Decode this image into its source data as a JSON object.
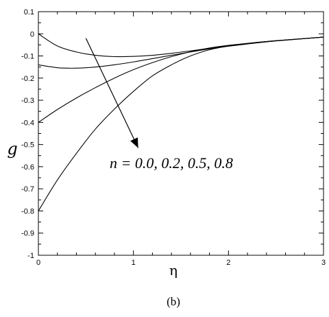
{
  "chart_data": {
    "type": "line",
    "xlabel": "η",
    "ylabel": "g",
    "xlim": [
      0,
      3
    ],
    "ylim": [
      -1,
      0.1
    ],
    "x_ticks": [
      "0",
      "1",
      "2",
      "3"
    ],
    "y_ticks": [
      "0.1",
      "0",
      "-0.1",
      "-0.2",
      "-0.3",
      "-0.4",
      "-0.5",
      "-0.6",
      "-0.7",
      "-0.8",
      "-0.9",
      "-1"
    ],
    "grid": false,
    "annotation": "n = 0.0, 0.2, 0.5, 0.8",
    "caption": "(b)",
    "series": [
      {
        "x": [
          0,
          0.2,
          0.4,
          0.6,
          0.8,
          1.0,
          1.2,
          1.4,
          1.6,
          1.8,
          2.0,
          2.2,
          2.5,
          3.0
        ],
        "values": [
          0,
          -0.055,
          -0.082,
          -0.097,
          -0.103,
          -0.102,
          -0.097,
          -0.088,
          -0.077,
          -0.066,
          -0.055,
          -0.045,
          -0.032,
          -0.015
        ]
      },
      {
        "x": [
          0,
          0.2,
          0.4,
          0.6,
          0.8,
          1.0,
          1.2,
          1.4,
          1.6,
          1.8,
          2.0,
          2.2,
          2.5,
          3.0
        ],
        "values": [
          -0.14,
          -0.153,
          -0.155,
          -0.15,
          -0.14,
          -0.127,
          -0.112,
          -0.097,
          -0.082,
          -0.068,
          -0.056,
          -0.046,
          -0.032,
          -0.015
        ]
      },
      {
        "x": [
          0,
          0.2,
          0.4,
          0.6,
          0.8,
          1.0,
          1.2,
          1.4,
          1.6,
          1.8,
          2.0,
          2.2,
          2.5,
          3.0
        ],
        "values": [
          -0.4,
          -0.342,
          -0.29,
          -0.243,
          -0.2,
          -0.162,
          -0.13,
          -0.103,
          -0.081,
          -0.064,
          -0.052,
          -0.043,
          -0.031,
          -0.015
        ]
      },
      {
        "x": [
          0,
          0.2,
          0.4,
          0.6,
          0.8,
          1.0,
          1.2,
          1.4,
          1.6,
          1.8,
          2.0,
          2.2,
          2.5,
          3.0
        ],
        "values": [
          -0.8,
          -0.66,
          -0.54,
          -0.43,
          -0.34,
          -0.26,
          -0.19,
          -0.14,
          -0.1,
          -0.072,
          -0.055,
          -0.044,
          -0.031,
          -0.015
        ]
      }
    ]
  }
}
